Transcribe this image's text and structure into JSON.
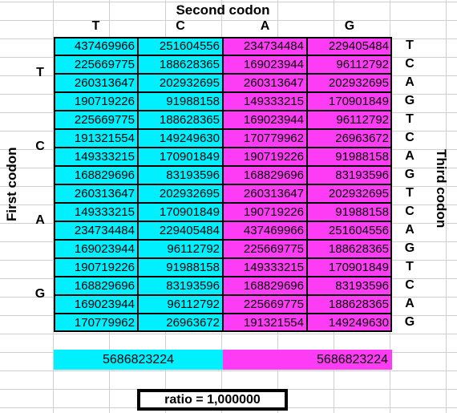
{
  "title": "Second codon",
  "first_codon_label": "First codon",
  "third_codon_label": "Third codon",
  "second_bases": [
    "T",
    "C",
    "A",
    "G"
  ],
  "first_bases": [
    "T",
    "C",
    "A",
    "G"
  ],
  "third_bases": [
    "T",
    "C",
    "A",
    "G",
    "T",
    "C",
    "A",
    "G",
    "T",
    "C",
    "A",
    "G",
    "T",
    "C",
    "A",
    "G"
  ],
  "colors": {
    "cyan": "#00f0ff",
    "magenta": "#ff3cf5"
  },
  "table": [
    [
      "437469966",
      "251604556",
      "234734484",
      "229405484"
    ],
    [
      "225669775",
      "188628365",
      "169023944",
      "96112792"
    ],
    [
      "260313647",
      "202932695",
      "260313647",
      "202932695"
    ],
    [
      "190719226",
      "91988158",
      "149333215",
      "170901849"
    ],
    [
      "225669775",
      "188628365",
      "169023944",
      "96112792"
    ],
    [
      "191321554",
      "149249630",
      "170779962",
      "26963672"
    ],
    [
      "149333215",
      "170901849",
      "190719226",
      "91988158"
    ],
    [
      "168829696",
      "83193596",
      "168829696",
      "83193596"
    ],
    [
      "260313647",
      "202932695",
      "260313647",
      "202932695"
    ],
    [
      "149333215",
      "170901849",
      "190719226",
      "91988158"
    ],
    [
      "234734484",
      "229405484",
      "437469966",
      "251604556"
    ],
    [
      "169023944",
      "96112792",
      "225669775",
      "188628365"
    ],
    [
      "190719226",
      "91988158",
      "149333215",
      "170901849"
    ],
    [
      "168829696",
      "83193596",
      "168829696",
      "83193596"
    ],
    [
      "169023944",
      "96112792",
      "225669775",
      "188628365"
    ],
    [
      "170779962",
      "26963672",
      "191321554",
      "149249630"
    ]
  ],
  "totals": {
    "left": "5686823224",
    "right": "5686823224"
  },
  "ratio_label": "ratio = ",
  "ratio_value": "1,000000"
}
